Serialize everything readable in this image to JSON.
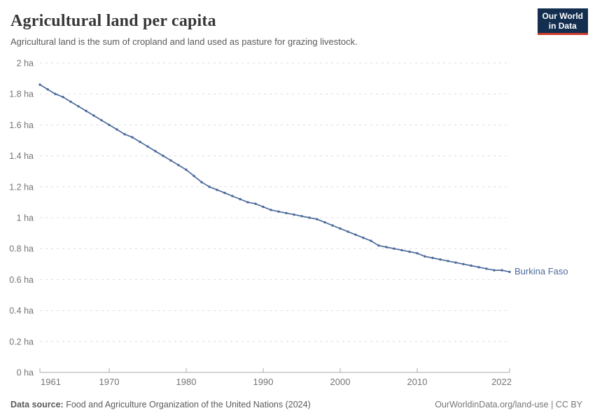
{
  "header": {
    "title": "Agricultural land per capita",
    "subtitle": "Agricultural land is the sum of cropland and land used as pasture for grazing livestock."
  },
  "logo": {
    "line1": "Our World",
    "line2": "in Data",
    "bg_color": "#132e4f",
    "stripe_color": "#cc3b2c"
  },
  "chart_data": {
    "type": "line",
    "title": "Agricultural land per capita",
    "unit": "ha",
    "xlim": [
      1961,
      2022
    ],
    "ylim": [
      0,
      2
    ],
    "grid": "horizontal-dashed",
    "legend_position": "line-end-label",
    "x_ticks": [
      1961,
      1970,
      1980,
      1990,
      2000,
      2010,
      2022
    ],
    "y_ticks": [
      0,
      0.2,
      0.4,
      0.6,
      0.8,
      1,
      1.2,
      1.4,
      1.6,
      1.8,
      2
    ],
    "y_tick_labels": [
      "0 ha",
      "0.2 ha",
      "0.4 ha",
      "0.6 ha",
      "0.8 ha",
      "1 ha",
      "1.2 ha",
      "1.4 ha",
      "1.6 ha",
      "1.8 ha",
      "2 ha"
    ],
    "series": [
      {
        "name": "Burkina Faso",
        "color": "#4C6A9C",
        "x": [
          1961,
          1962,
          1963,
          1964,
          1965,
          1966,
          1967,
          1968,
          1969,
          1970,
          1971,
          1972,
          1973,
          1974,
          1975,
          1976,
          1977,
          1978,
          1979,
          1980,
          1981,
          1982,
          1983,
          1984,
          1985,
          1986,
          1987,
          1988,
          1989,
          1990,
          1991,
          1992,
          1993,
          1994,
          1995,
          1996,
          1997,
          1998,
          1999,
          2000,
          2001,
          2002,
          2003,
          2004,
          2005,
          2006,
          2007,
          2008,
          2009,
          2010,
          2011,
          2012,
          2013,
          2014,
          2015,
          2016,
          2017,
          2018,
          2019,
          2020,
          2021,
          2022
        ],
        "values": [
          1.86,
          1.83,
          1.8,
          1.78,
          1.75,
          1.72,
          1.69,
          1.66,
          1.63,
          1.6,
          1.57,
          1.54,
          1.52,
          1.49,
          1.46,
          1.43,
          1.4,
          1.37,
          1.34,
          1.31,
          1.27,
          1.23,
          1.2,
          1.18,
          1.16,
          1.14,
          1.12,
          1.1,
          1.09,
          1.07,
          1.05,
          1.04,
          1.03,
          1.02,
          1.01,
          1.0,
          0.99,
          0.97,
          0.95,
          0.93,
          0.91,
          0.89,
          0.87,
          0.85,
          0.82,
          0.81,
          0.8,
          0.79,
          0.78,
          0.77,
          0.75,
          0.74,
          0.73,
          0.72,
          0.71,
          0.7,
          0.69,
          0.68,
          0.67,
          0.66,
          0.66,
          0.65
        ]
      }
    ]
  },
  "footer": {
    "source_label": "Data source:",
    "source_text": "Food and Agriculture Organization of the United Nations (2024)",
    "credit_text": "OurWorldinData.org/land-use | CC BY"
  },
  "colors": {
    "line": "#4C6A9C",
    "grid": "#dcdcdc",
    "axis": "#a8a8a8",
    "tick_label": "#757575",
    "title": "#373737",
    "subtitle": "#5a5a5a"
  }
}
